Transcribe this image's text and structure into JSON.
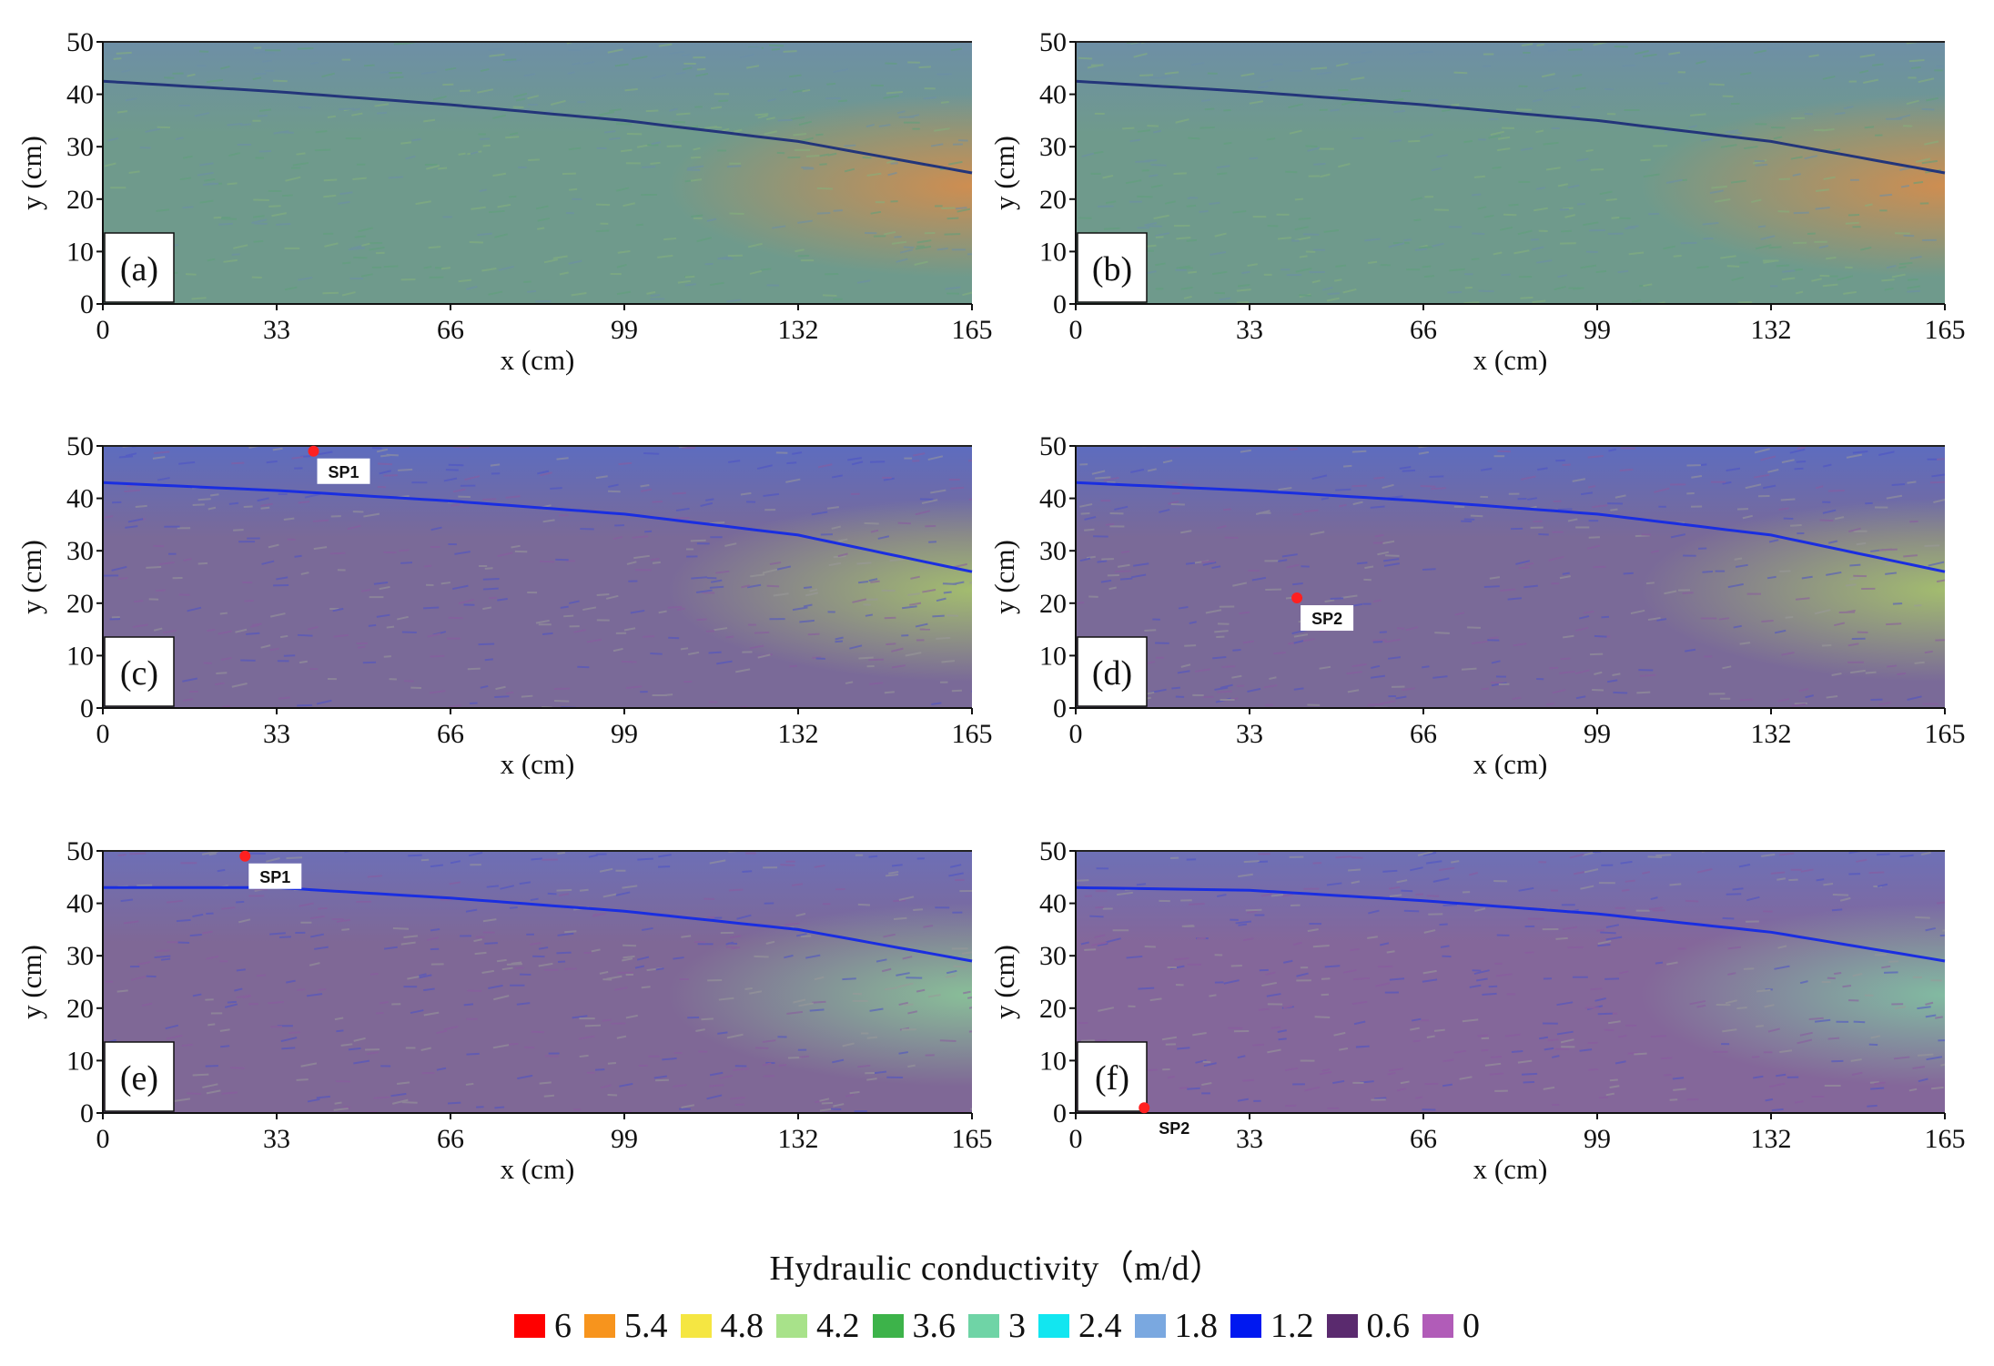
{
  "chart_data": {
    "type": "heatmap",
    "panels": [
      {
        "label": "(a)",
        "water_table": {
          "x": [
            0,
            33,
            66,
            99,
            132,
            165
          ],
          "y": [
            42.5,
            40.5,
            38,
            35,
            31,
            25
          ]
        },
        "sampling_point": null,
        "dominant_k": 3.0
      },
      {
        "label": "(b)",
        "water_table": {
          "x": [
            0,
            33,
            66,
            99,
            132,
            165
          ],
          "y": [
            42.5,
            40.5,
            38,
            35,
            31,
            25
          ]
        },
        "sampling_point": null,
        "dominant_k": 3.0
      },
      {
        "label": "(c)",
        "water_table": {
          "x": [
            0,
            33,
            66,
            99,
            132,
            165
          ],
          "y": [
            43,
            41.5,
            39.5,
            37,
            33,
            26
          ]
        },
        "sampling_point": {
          "name": "SP1",
          "x": 40,
          "y": 49
        },
        "dominant_k": 1.0
      },
      {
        "label": "(d)",
        "water_table": {
          "x": [
            0,
            33,
            66,
            99,
            132,
            165
          ],
          "y": [
            43,
            41.5,
            39.5,
            37,
            33,
            26
          ]
        },
        "sampling_point": {
          "name": "SP2",
          "x": 42,
          "y": 21
        },
        "dominant_k": 1.0
      },
      {
        "label": "(e)",
        "water_table": {
          "x": [
            0,
            33,
            66,
            99,
            132,
            165
          ],
          "y": [
            43,
            43,
            41,
            38.5,
            35,
            29
          ]
        },
        "sampling_point": {
          "name": "SP1",
          "x": 27,
          "y": 49
        },
        "dominant_k": 0.8
      },
      {
        "label": "(f)",
        "water_table": {
          "x": [
            0,
            33,
            66,
            99,
            132,
            165
          ],
          "y": [
            43,
            42.5,
            40.5,
            38,
            34.5,
            29
          ]
        },
        "sampling_point": {
          "name": "SP2",
          "x": 13,
          "y": 1
        },
        "dominant_k": 0.7
      }
    ],
    "xlabel": "x (cm)",
    "ylabel": "y (cm)",
    "xticks": [
      "0",
      "33",
      "66",
      "99",
      "132",
      "165"
    ],
    "yticks": [
      "0",
      "10",
      "20",
      "30",
      "40",
      "50"
    ],
    "xlim": [
      0,
      165
    ],
    "ylim": [
      0,
      50
    ],
    "legend": {
      "title": "Hydraulic conductivity（m/d）",
      "placement": "bottom",
      "items": [
        {
          "label": "6",
          "color": "#ff0000"
        },
        {
          "label": "5.4",
          "color": "#f7941d"
        },
        {
          "label": "4.8",
          "color": "#f5e642"
        },
        {
          "label": "4.2",
          "color": "#a8e28a"
        },
        {
          "label": "3.6",
          "color": "#3db34a"
        },
        {
          "label": "3",
          "color": "#6fd4a6"
        },
        {
          "label": "2.4",
          "color": "#12e6f0"
        },
        {
          "label": "1.8",
          "color": "#7aa8e0"
        },
        {
          "label": "1.2",
          "color": "#0018f0"
        },
        {
          "label": "0.6",
          "color": "#5a2a6e"
        },
        {
          "label": "0",
          "color": "#b15cb8"
        }
      ]
    }
  }
}
